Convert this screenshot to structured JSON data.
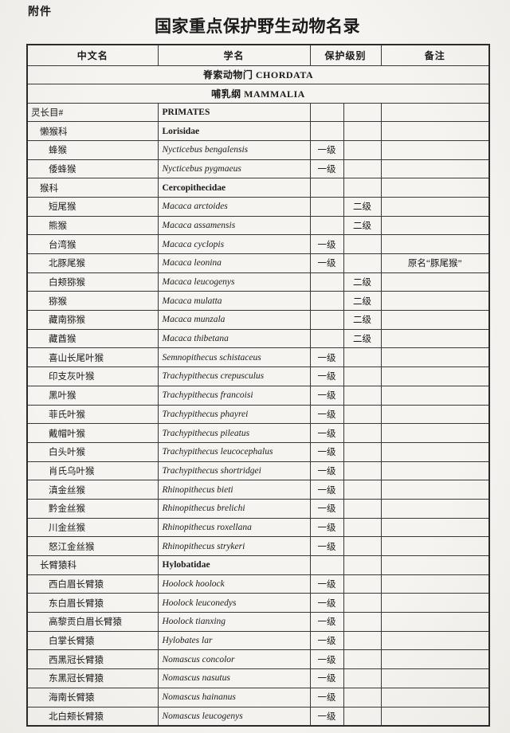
{
  "page": {
    "attachment_label": "附件",
    "title": "国家重点保护野生动物名录"
  },
  "table": {
    "headers": [
      "中文名",
      "学名",
      "保护级别",
      "备注"
    ],
    "phylum_row": "脊索动物门  CHORDATA",
    "class_row": "哺乳纲  MAMMALIA",
    "rows": [
      {
        "type": "order",
        "cn": "灵长目#",
        "sci": "PRIMATES",
        "level": "",
        "note": ""
      },
      {
        "type": "family",
        "cn": "懒猴科",
        "sci": "Lorisidae",
        "level": "",
        "note": ""
      },
      {
        "type": "species",
        "cn": "蜂猴",
        "sci": "Nycticebus bengalensis",
        "level": "一级",
        "note": ""
      },
      {
        "type": "species",
        "cn": "倭蜂猴",
        "sci": "Nycticebus pygmaeus",
        "level": "一级",
        "note": ""
      },
      {
        "type": "family",
        "cn": "猴科",
        "sci": "Cercopithecidae",
        "level": "",
        "note": ""
      },
      {
        "type": "species",
        "cn": "短尾猴",
        "sci": "Macaca arctoides",
        "level": "二级",
        "note": ""
      },
      {
        "type": "species",
        "cn": "熊猴",
        "sci": "Macaca assamensis",
        "level": "二级",
        "note": ""
      },
      {
        "type": "species",
        "cn": "台湾猴",
        "sci": "Macaca cyclopis",
        "level": "一级",
        "note": ""
      },
      {
        "type": "species",
        "cn": "北豚尾猴",
        "sci": "Macaca leonina",
        "level": "一级",
        "note": "原名“豚尾猴”"
      },
      {
        "type": "species",
        "cn": "白颊猕猴",
        "sci": "Macaca leucogenys",
        "level": "二级",
        "note": ""
      },
      {
        "type": "species",
        "cn": "猕猴",
        "sci": "Macaca mulatta",
        "level": "二级",
        "note": ""
      },
      {
        "type": "species",
        "cn": "藏南猕猴",
        "sci": "Macaca munzala",
        "level": "二级",
        "note": ""
      },
      {
        "type": "species",
        "cn": "藏酋猴",
        "sci": "Macaca thibetana",
        "level": "二级",
        "note": ""
      },
      {
        "type": "species",
        "cn": "喜山长尾叶猴",
        "sci": "Semnopithecus schistaceus",
        "level": "一级",
        "note": ""
      },
      {
        "type": "species",
        "cn": "印支灰叶猴",
        "sci": "Trachypithecus crepusculus",
        "level": "一级",
        "note": ""
      },
      {
        "type": "species",
        "cn": "黑叶猴",
        "sci": "Trachypithecus francoisi",
        "level": "一级",
        "note": ""
      },
      {
        "type": "species",
        "cn": "菲氏叶猴",
        "sci": "Trachypithecus phayrei",
        "level": "一级",
        "note": ""
      },
      {
        "type": "species",
        "cn": "戴帽叶猴",
        "sci": "Trachypithecus pileatus",
        "level": "一级",
        "note": ""
      },
      {
        "type": "species",
        "cn": "白头叶猴",
        "sci": "Trachypithecus leucocephalus",
        "level": "一级",
        "note": ""
      },
      {
        "type": "species",
        "cn": "肖氏乌叶猴",
        "sci": "Trachypithecus shortridgei",
        "level": "一级",
        "note": ""
      },
      {
        "type": "species",
        "cn": "滇金丝猴",
        "sci": "Rhinopithecus bieti",
        "level": "一级",
        "note": ""
      },
      {
        "type": "species",
        "cn": "黔金丝猴",
        "sci": "Rhinopithecus brelichi",
        "level": "一级",
        "note": ""
      },
      {
        "type": "species",
        "cn": "川金丝猴",
        "sci": "Rhinopithecus roxellana",
        "level": "一级",
        "note": ""
      },
      {
        "type": "species",
        "cn": "怒江金丝猴",
        "sci": "Rhinopithecus strykeri",
        "level": "一级",
        "note": ""
      },
      {
        "type": "family",
        "cn": "长臂猿科",
        "sci": "Hylobatidae",
        "level": "",
        "note": ""
      },
      {
        "type": "species",
        "cn": "西白眉长臂猿",
        "sci": "Hoolock hoolock",
        "level": "一级",
        "note": ""
      },
      {
        "type": "species",
        "cn": "东白眉长臂猿",
        "sci": "Hoolock leuconedys",
        "level": "一级",
        "note": ""
      },
      {
        "type": "species",
        "cn": "高黎贡白眉长臂猿",
        "sci": "Hoolock tianxing",
        "level": "一级",
        "note": ""
      },
      {
        "type": "species",
        "cn": "白掌长臂猿",
        "sci": "Hylobates lar",
        "level": "一级",
        "note": ""
      },
      {
        "type": "species",
        "cn": "西黑冠长臂猿",
        "sci": "Nomascus concolor",
        "level": "一级",
        "note": ""
      },
      {
        "type": "species",
        "cn": "东黑冠长臂猿",
        "sci": "Nomascus nasutus",
        "level": "一级",
        "note": ""
      },
      {
        "type": "species",
        "cn": "海南长臂猿",
        "sci": "Nomascus hainanus",
        "level": "一级",
        "note": ""
      },
      {
        "type": "species",
        "cn": "北白颊长臂猿",
        "sci": "Nomascus leucogenys",
        "level": "一级",
        "note": ""
      }
    ]
  }
}
